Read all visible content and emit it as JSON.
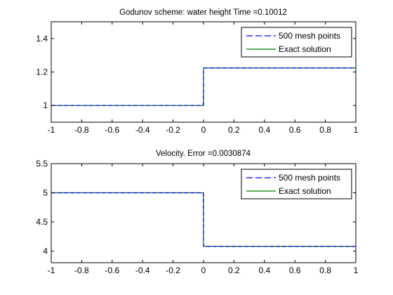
{
  "colors": {
    "numerical": "#0000ff",
    "exact": "#007f00",
    "axes": "#000000",
    "background": "#ffffff"
  },
  "chart_data": [
    {
      "type": "line",
      "title": "Godunov scheme: water height      Time =0.10012",
      "xlabel": "",
      "ylabel": "",
      "xlim": [
        -1,
        1
      ],
      "ylim": [
        0.9,
        1.5
      ],
      "xticks": [
        -1,
        -0.8,
        -0.6,
        -0.4,
        -0.2,
        0,
        0.2,
        0.4,
        0.6,
        0.8,
        1
      ],
      "xtick_labels": [
        "-1",
        "-0.8",
        "-0.6",
        "-0.4",
        "-0.2",
        "0",
        "0.2",
        "0.4",
        "0.6",
        "0.8",
        "1"
      ],
      "yticks": [
        1,
        1.2,
        1.4
      ],
      "ytick_labels": [
        "1",
        "1.2",
        "1.4"
      ],
      "grid": false,
      "legend_position": "top-right",
      "series": [
        {
          "name": "500 mesh points",
          "style": "dashed",
          "x": [
            -1,
            -0.004,
            -0.002,
            0.0,
            0.0,
            1
          ],
          "y": [
            1.0,
            1.0,
            1.0,
            1.1,
            1.224,
            1.224
          ]
        },
        {
          "name": "Exact solution",
          "style": "solid",
          "x": [
            -1,
            0.0,
            0.0,
            1
          ],
          "y": [
            1.0,
            1.0,
            1.224,
            1.224
          ]
        }
      ]
    },
    {
      "type": "line",
      "title": "Velocity.        Error =0.0030874",
      "xlabel": "",
      "ylabel": "",
      "xlim": [
        -1,
        1
      ],
      "ylim": [
        3.8,
        5.5
      ],
      "xticks": [
        -1,
        -0.8,
        -0.6,
        -0.4,
        -0.2,
        0,
        0.2,
        0.4,
        0.6,
        0.8,
        1
      ],
      "xtick_labels": [
        "-1",
        "-0.8",
        "-0.6",
        "-0.4",
        "-0.2",
        "0",
        "0.2",
        "0.4",
        "0.6",
        "0.8",
        "1"
      ],
      "yticks": [
        4,
        4.5,
        5,
        5.5
      ],
      "ytick_labels": [
        "4",
        "4.5",
        "5",
        "5.5"
      ],
      "grid": false,
      "legend_position": "top-right",
      "series": [
        {
          "name": "500 mesh points",
          "style": "dashed",
          "x": [
            -1,
            -0.004,
            -0.002,
            0.0,
            0.0,
            1
          ],
          "y": [
            5.0,
            5.0,
            5.0,
            4.55,
            4.08,
            4.08
          ]
        },
        {
          "name": "Exact solution",
          "style": "solid",
          "x": [
            -1,
            0.0,
            0.0,
            1
          ],
          "y": [
            5.0,
            5.0,
            4.08,
            4.08
          ]
        }
      ]
    }
  ]
}
